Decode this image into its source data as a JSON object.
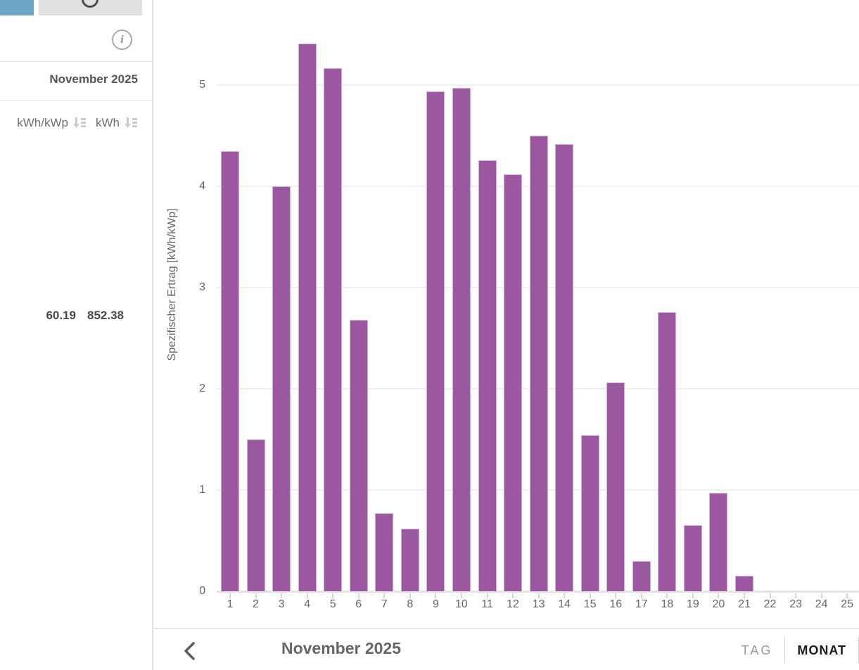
{
  "sidebar": {
    "month_label": "November 2025",
    "columns": [
      {
        "label": "kWh/kWp",
        "sort_icon": "sort-icon"
      },
      {
        "label": "kWh",
        "sort_icon": "sort-icon"
      }
    ],
    "totals": {
      "kwh_per_kwp": "60.19",
      "kwh": "852.38"
    },
    "info_icon_text": "i"
  },
  "chart_data": {
    "type": "bar",
    "title": "",
    "xlabel": "",
    "ylabel": "Spezifischer Ertrag [kWh/kWp]",
    "categories": [
      "1",
      "2",
      "3",
      "4",
      "5",
      "6",
      "7",
      "8",
      "9",
      "10",
      "11",
      "12",
      "13",
      "14",
      "15",
      "16",
      "17",
      "18",
      "19",
      "20",
      "21",
      "22",
      "23",
      "24",
      "25"
    ],
    "values": [
      4.35,
      1.5,
      4.0,
      5.41,
      5.17,
      2.68,
      0.77,
      0.62,
      4.94,
      4.97,
      4.26,
      4.12,
      4.5,
      4.42,
      1.54,
      2.06,
      0.3,
      2.76,
      0.65,
      0.97,
      0.15,
      0,
      0,
      0,
      0
    ],
    "yticks": [
      0,
      1,
      2,
      3,
      4,
      5
    ],
    "ylim": [
      0,
      5.6
    ],
    "grid": true,
    "legend": "none",
    "bar_color": "#9b57a0",
    "bar_border_color": "#d4b3d8"
  },
  "footer": {
    "period_label": "November 2025",
    "prev_icon": "chevron-left-icon",
    "view_options": [
      {
        "label": "TAG",
        "active": false
      },
      {
        "label": "MONAT",
        "active": true
      }
    ]
  },
  "colors": {
    "bar": "#9b57a0",
    "blue_square": "#6ca6c6",
    "gray_button": "#e0e0e0",
    "grid": "#efefef",
    "axis_text": "#666666"
  }
}
